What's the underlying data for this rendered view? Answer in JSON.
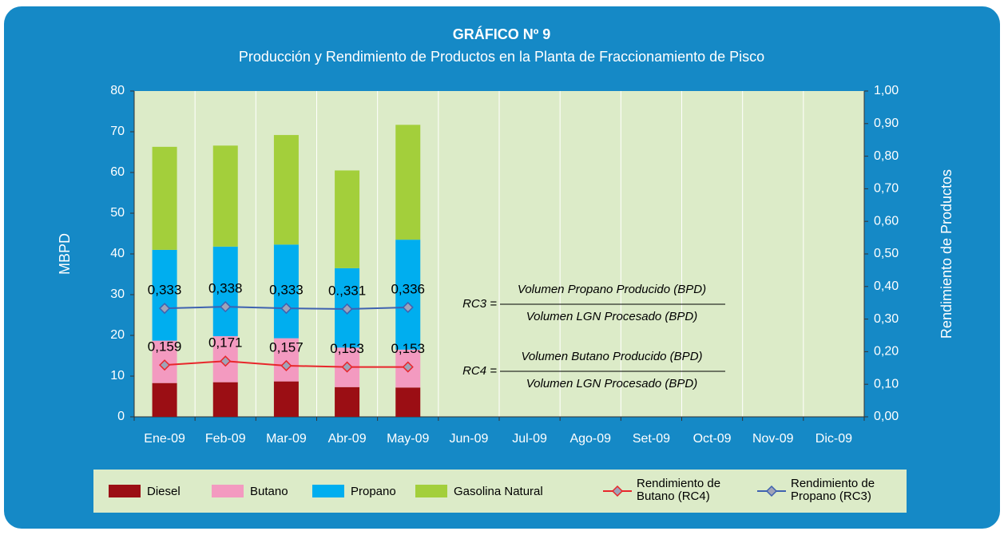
{
  "chart_data": {
    "type": "bar",
    "title": "GRÁFICO Nº 9",
    "subtitle": "Producción y Rendimiento de Productos en la Planta de Fraccionamiento de Pisco",
    "y_label": "MBPD",
    "y2_label": "Rendimiento de Productos",
    "categories": [
      "Ene-09",
      "Feb-09",
      "Mar-09",
      "Abr-09",
      "May-09",
      "Jun-09",
      "Jul-09",
      "Ago-09",
      "Set-09",
      "Oct-09",
      "Nov-09",
      "Dic-09"
    ],
    "ylim": [
      0,
      80
    ],
    "yticks": [
      0,
      10,
      20,
      30,
      40,
      50,
      60,
      70,
      80
    ],
    "y2lim": [
      0,
      1
    ],
    "y2ticks": [
      {
        "value": 0,
        "label": "0,00"
      },
      {
        "value": 0.1,
        "label": "0,10"
      },
      {
        "value": 0.2,
        "label": "0,20"
      },
      {
        "value": 0.3,
        "label": "0,30"
      },
      {
        "value": 0.4,
        "label": "0,40"
      },
      {
        "value": 0.5,
        "label": "0,50"
      },
      {
        "value": 0.6,
        "label": "0,60"
      },
      {
        "value": 0.7,
        "label": "0,70"
      },
      {
        "value": 0.8,
        "label": "0,80"
      },
      {
        "value": 0.9,
        "label": "0,90"
      },
      {
        "value": 1,
        "label": "1,00"
      }
    ],
    "series": [
      {
        "name": "Diesel",
        "color": "#9b0e14",
        "values": [
          8.3,
          8.5,
          8.7,
          7.3,
          7.2,
          null,
          null,
          null,
          null,
          null,
          null,
          null
        ]
      },
      {
        "name": "Butano",
        "color": "#f39ac0",
        "values": [
          10.4,
          11.3,
          10.6,
          9.7,
          9.3,
          null,
          null,
          null,
          null,
          null,
          null,
          null
        ]
      },
      {
        "name": "Propano",
        "color": "#00aeef",
        "values": [
          22.3,
          22.0,
          23.0,
          19.5,
          27.0,
          null,
          null,
          null,
          null,
          null,
          null,
          null
        ]
      },
      {
        "name": "Gasolina Natural",
        "color": "#a3cf3b",
        "values": [
          25.3,
          24.8,
          26.9,
          24.0,
          28.2,
          null,
          null,
          null,
          null,
          null,
          null,
          null
        ]
      },
      {
        "name": "Rendimiento de Butano (RC4)",
        "type": "line",
        "axis": "y2",
        "color": "#e8262b",
        "values": [
          0.159,
          0.171,
          0.157,
          0.153,
          0.153,
          null,
          null,
          null,
          null,
          null,
          null,
          null
        ],
        "value_labels": [
          "0,159",
          "0,171",
          "0,157",
          "0,153",
          "0,153",
          null,
          null,
          null,
          null,
          null,
          null,
          null
        ]
      },
      {
        "name": "Rendimiento de Propano (RC3)",
        "type": "line",
        "axis": "y2",
        "color": "#3f62b0",
        "values": [
          0.333,
          0.338,
          0.333,
          0.331,
          0.336,
          null,
          null,
          null,
          null,
          null,
          null,
          null
        ],
        "value_labels": [
          "0,333",
          "0,338",
          "0,333",
          "0.,331",
          "0,336",
          null,
          null,
          null,
          null,
          null,
          null,
          null
        ]
      }
    ],
    "annotations": [
      {
        "lhs": "RC3 =",
        "numerator": "Volumen Propano Producido (BPD)",
        "denominator": "Volumen LGN Procesado (BPD)"
      },
      {
        "lhs": "RC4 =",
        "numerator": "Volumen Butano Producido (BPD)",
        "denominator": "Volumen LGN Procesado (BPD)"
      }
    ]
  }
}
